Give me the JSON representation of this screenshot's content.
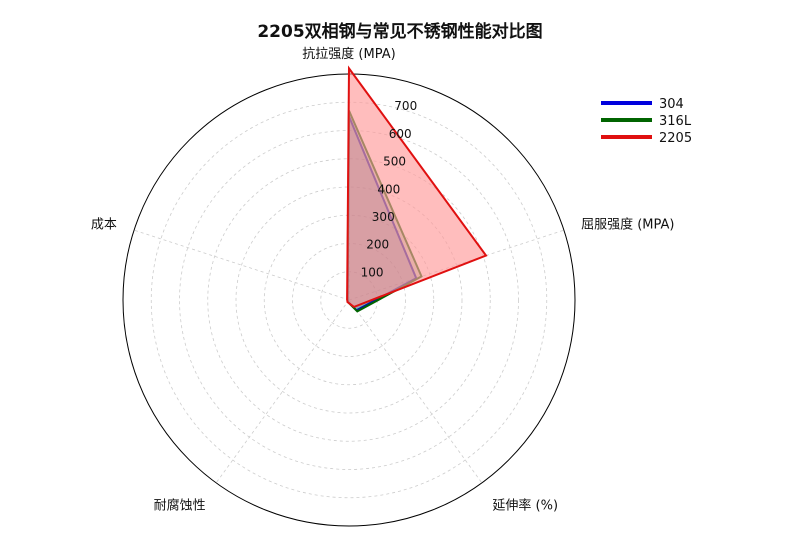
{
  "chart_data": {
    "type": "radar",
    "title": "2205双相钢与常见不锈钢性能对比图",
    "axes": [
      "抗拉强度 (MPA)",
      "屈服强度 (MPA)",
      "延伸率 (%)",
      "耐腐蚀性",
      "成本"
    ],
    "rlim": [
      0,
      800
    ],
    "rticks": [
      100,
      200,
      300,
      400,
      500,
      600,
      700
    ],
    "grid": true,
    "legend_position": "top-right",
    "series": [
      {
        "name": "304",
        "color": "#0000dd",
        "values": [
          650,
          250,
          45,
          7,
          5
        ]
      },
      {
        "name": "316L",
        "color": "#006400",
        "values": [
          670,
          270,
          50,
          8,
          6
        ]
      },
      {
        "name": "2205",
        "color": "#e01010",
        "values": [
          820,
          510,
          30,
          9,
          7
        ],
        "fill": "#ff9999"
      }
    ]
  }
}
